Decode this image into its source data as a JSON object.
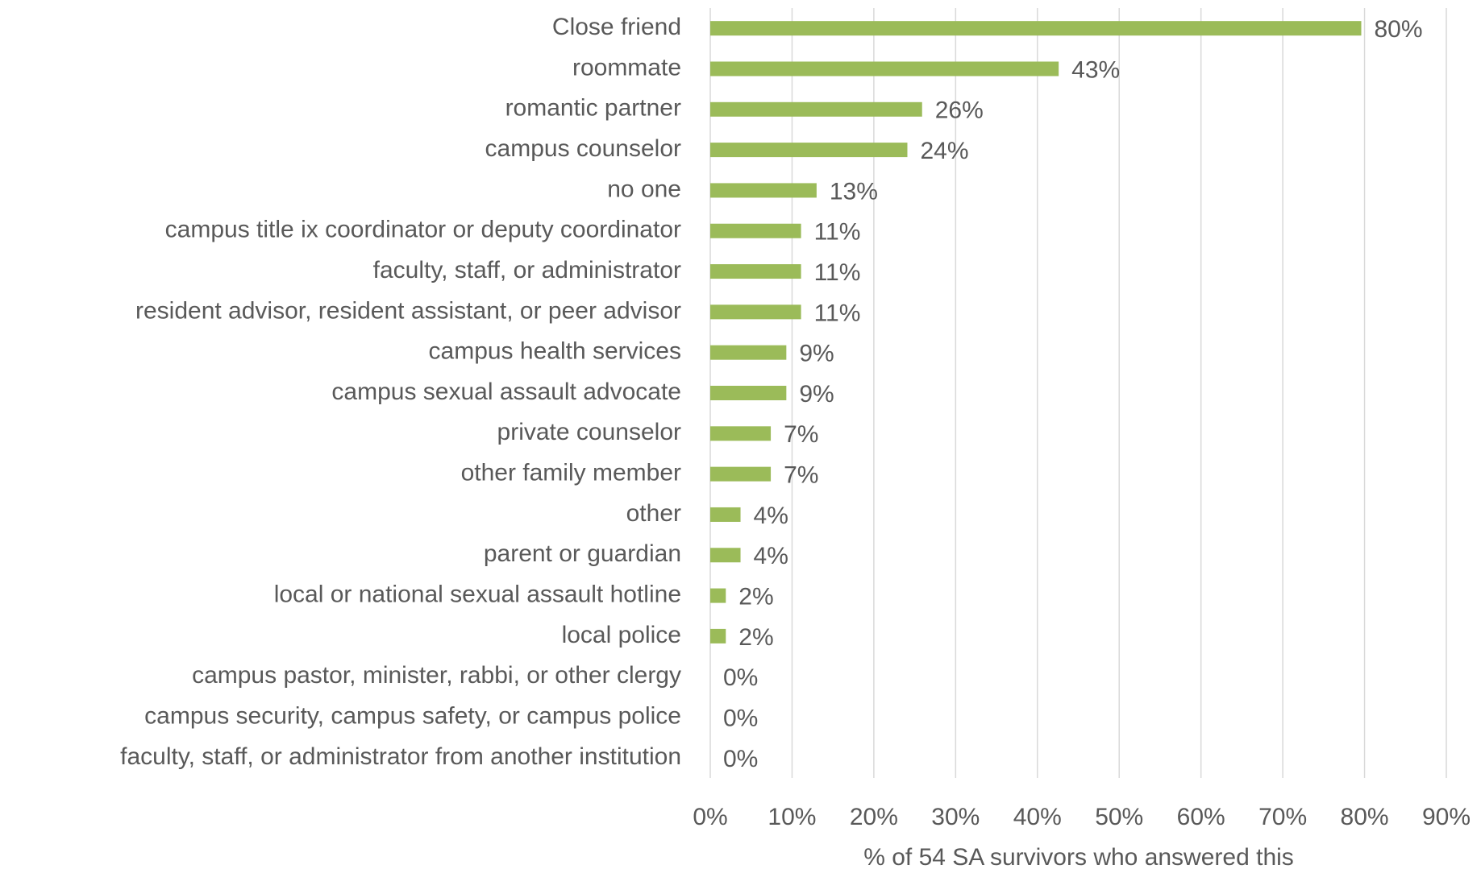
{
  "chart_data": {
    "type": "bar",
    "orientation": "horizontal",
    "categories": [
      "Close friend",
      "roommate",
      "romantic partner",
      "campus counselor",
      "no one",
      "campus title ix coordinator or deputy coordinator",
      "faculty, staff, or administrator",
      "resident advisor, resident assistant, or peer advisor",
      "campus health services",
      "campus sexual assault advocate",
      "private counselor",
      "other family member",
      "other",
      "parent or guardian",
      "local or national sexual assault hotline",
      "local police",
      "campus pastor, minister, rabbi, or other clergy",
      "campus security, campus safety, or campus police",
      "faculty, staff, or administrator from another institution"
    ],
    "values": [
      79.6,
      42.6,
      25.9,
      24.1,
      13.0,
      11.1,
      11.1,
      11.1,
      9.3,
      9.3,
      7.4,
      7.4,
      3.7,
      3.7,
      1.9,
      1.9,
      0,
      0,
      0
    ],
    "value_labels": [
      "80%",
      "43%",
      "26%",
      "24%",
      "13%",
      "11%",
      "11%",
      "11%",
      "9%",
      "9%",
      "7%",
      "7%",
      "4%",
      "4%",
      "2%",
      "2%",
      "0%",
      "0%",
      "0%"
    ],
    "color": "#9bbb59",
    "xlabel": "% of 54 SA survivors who answered this",
    "xlim": [
      0,
      90
    ],
    "xticks": [
      {
        "value": 0,
        "label": "0%"
      },
      {
        "value": 10,
        "label": "10%"
      },
      {
        "value": 20,
        "label": "20%"
      },
      {
        "value": 30,
        "label": "30%"
      },
      {
        "value": 40,
        "label": "40%"
      },
      {
        "value": 50,
        "label": "50%"
      },
      {
        "value": 60,
        "label": "60%"
      },
      {
        "value": 70,
        "label": "70%"
      },
      {
        "value": 80,
        "label": "80%"
      },
      {
        "value": 90,
        "label": "90%"
      }
    ],
    "grid": true
  }
}
